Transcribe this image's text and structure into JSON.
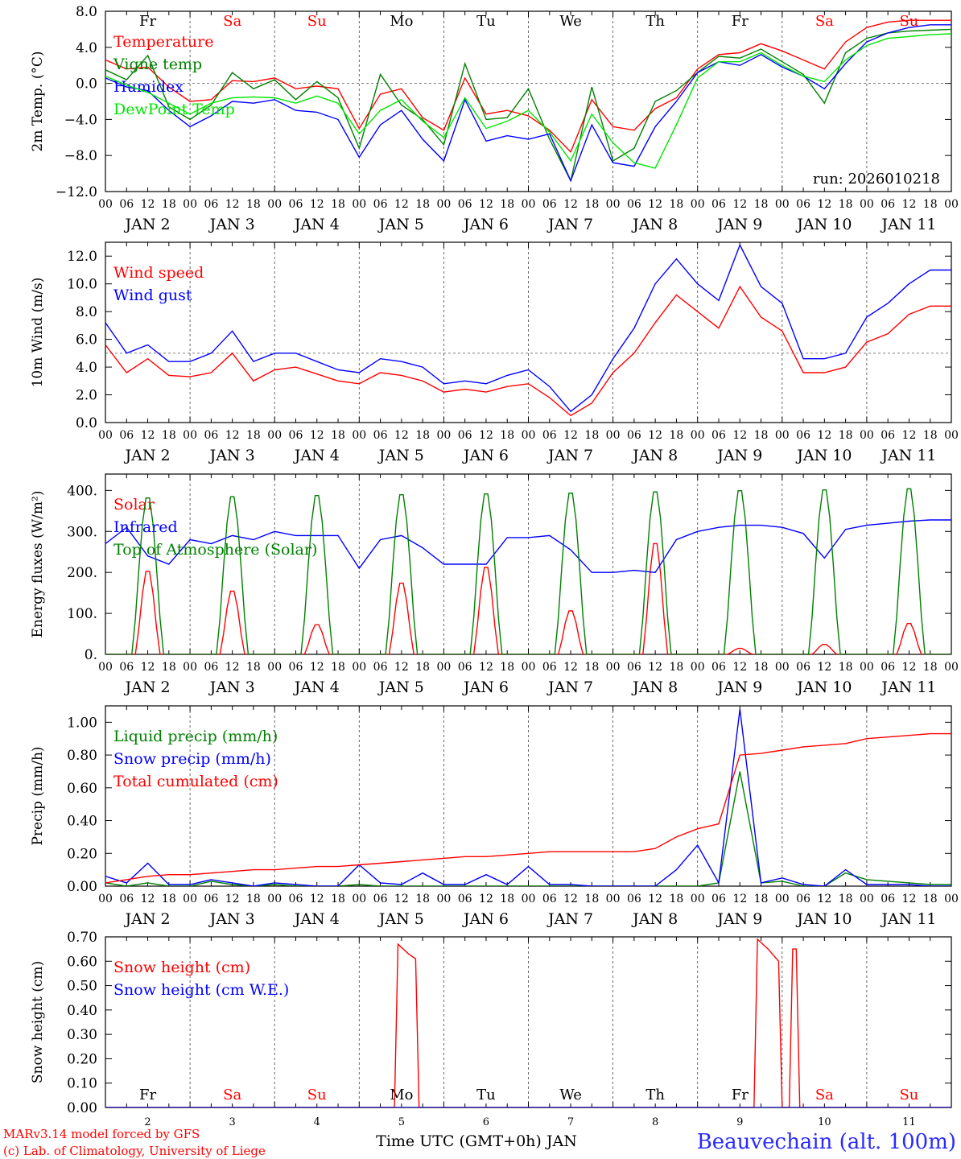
{
  "chart_data": [
    {
      "type": "line",
      "id": "temp",
      "ylabel": "2m Temp. (°C)",
      "ylim": [
        -12,
        8
      ],
      "yticks": [
        -12,
        -8,
        -4,
        0,
        4,
        8
      ],
      "ytick_labels": [
        "−12.0",
        "−8.0",
        "−4.0",
        "0.0",
        "4.0",
        "8.0"
      ],
      "ref_line": 0,
      "show_days_header": true,
      "annotation": "run: 2026010218",
      "x_hours": [
        0,
        6,
        12,
        18,
        24,
        30,
        36,
        42,
        48,
        54,
        60,
        66,
        72,
        78,
        84,
        90,
        96,
        102,
        108,
        114,
        120,
        126,
        132,
        138,
        144,
        150,
        156,
        162,
        168,
        174,
        180,
        186,
        192,
        198,
        204,
        210,
        216,
        222,
        228,
        234,
        240
      ],
      "series": [
        {
          "name": "Temperature",
          "color": "#ff0000",
          "values": [
            2.6,
            1.6,
            1.8,
            -0.4,
            -2.0,
            -1.8,
            0.3,
            0.2,
            0.6,
            -0.6,
            -0.3,
            -0.6,
            -5.0,
            -1.2,
            -0.6,
            -3.8,
            -5.2,
            0.6,
            -3.4,
            -3.0,
            -3.6,
            -5.2,
            -7.6,
            -1.8,
            -4.8,
            -5.2,
            -2.8,
            -1.6,
            1.6,
            3.2,
            3.4,
            4.4,
            3.6,
            2.6,
            1.6,
            4.6,
            6.2,
            6.8,
            7.0,
            7.0,
            7.0
          ]
        },
        {
          "name": "Vigne temp",
          "color": "#008000",
          "values": [
            1.5,
            0.4,
            3.1,
            -2.6,
            -4.0,
            -2.4,
            1.2,
            -0.6,
            0.4,
            -1.8,
            0.2,
            -1.6,
            -7.2,
            1.0,
            -2.4,
            -4.0,
            -6.8,
            2.2,
            -4.0,
            -3.8,
            -0.6,
            -6.2,
            -10.8,
            -0.4,
            -8.6,
            -7.2,
            -2.0,
            -0.8,
            1.2,
            3.0,
            2.8,
            3.8,
            2.4,
            1.0,
            -2.2,
            3.4,
            5.0,
            5.6,
            5.8,
            5.9,
            6.0
          ]
        },
        {
          "name": "Humidex",
          "color": "#0000ff",
          "values": [
            0.6,
            -0.4,
            -0.8,
            -3.0,
            -4.8,
            -3.6,
            -2.0,
            -2.2,
            -1.8,
            -3.0,
            -3.2,
            -4.0,
            -8.2,
            -4.6,
            -3.0,
            -6.2,
            -8.6,
            -1.8,
            -6.4,
            -5.8,
            -6.2,
            -5.6,
            -10.8,
            -4.6,
            -8.8,
            -9.2,
            -4.8,
            -2.0,
            1.2,
            2.4,
            2.0,
            3.2,
            1.8,
            0.8,
            -0.6,
            2.2,
            4.6,
            5.6,
            6.2,
            6.5,
            6.5
          ]
        },
        {
          "name": "DewPoint Temp",
          "color": "#00e600",
          "values": [
            0.8,
            -0.2,
            -1.0,
            -2.2,
            -3.4,
            -2.2,
            -1.6,
            -1.5,
            -1.6,
            -2.2,
            -1.4,
            -2.2,
            -5.6,
            -3.0,
            -1.8,
            -4.2,
            -6.0,
            -1.6,
            -5.0,
            -4.2,
            -3.0,
            -5.4,
            -8.6,
            -3.4,
            -6.6,
            -8.8,
            -9.4,
            -4.6,
            0.6,
            2.4,
            2.4,
            3.4,
            2.0,
            0.8,
            0.2,
            2.6,
            4.2,
            5.0,
            5.2,
            5.4,
            5.5
          ]
        }
      ]
    },
    {
      "type": "line",
      "id": "wind",
      "ylabel": "10m Wind (m/s)",
      "ylim": [
        0,
        13
      ],
      "yticks": [
        0,
        2,
        4,
        6,
        8,
        10,
        12
      ],
      "ytick_labels": [
        "0.0",
        "2.0",
        "4.0",
        "6.0",
        "8.0",
        "10.0",
        "12.0"
      ],
      "ref_line": 5,
      "x_hours": [
        0,
        6,
        12,
        18,
        24,
        30,
        36,
        42,
        48,
        54,
        60,
        66,
        72,
        78,
        84,
        90,
        96,
        102,
        108,
        114,
        120,
        126,
        132,
        138,
        144,
        150,
        156,
        162,
        168,
        174,
        180,
        186,
        192,
        198,
        204,
        210,
        216,
        222,
        228,
        234,
        240
      ],
      "series": [
        {
          "name": "Wind speed",
          "color": "#ff0000",
          "values": [
            5.6,
            3.6,
            4.6,
            3.4,
            3.3,
            3.6,
            5.0,
            3.0,
            3.8,
            4.0,
            3.5,
            3.0,
            2.8,
            3.6,
            3.4,
            3.0,
            2.2,
            2.4,
            2.2,
            2.6,
            2.8,
            1.8,
            0.5,
            1.4,
            3.6,
            5.0,
            7.2,
            9.2,
            8.0,
            6.8,
            9.8,
            7.6,
            6.6,
            3.6,
            3.6,
            4.0,
            5.8,
            6.4,
            7.8,
            8.4,
            8.4
          ]
        },
        {
          "name": "Wind gust",
          "color": "#0000ff",
          "values": [
            7.2,
            5.0,
            5.6,
            4.4,
            4.4,
            5.0,
            6.6,
            4.4,
            5.0,
            5.0,
            4.4,
            3.8,
            3.6,
            4.6,
            4.4,
            4.0,
            2.8,
            3.0,
            2.8,
            3.4,
            3.8,
            2.6,
            0.8,
            2.0,
            4.6,
            6.8,
            10.0,
            11.8,
            10.0,
            8.8,
            12.8,
            9.8,
            8.6,
            4.6,
            4.6,
            5.0,
            7.6,
            8.6,
            10.0,
            11.0,
            11.0
          ]
        }
      ]
    },
    {
      "type": "line",
      "id": "flux",
      "ylabel": "Energy fluxes (W/m²)",
      "ylim": [
        0,
        440
      ],
      "yticks": [
        0,
        100,
        200,
        300,
        400
      ],
      "ytick_labels": [
        "0.",
        "100.",
        "200.",
        "300.",
        "400."
      ],
      "series": [
        {
          "name": "Solar",
          "color": "#ff0000",
          "day_peaks": [
            210,
            160,
            75,
            180,
            220,
            110,
            280,
            15,
            25,
            78
          ]
        },
        {
          "name": "Infrared",
          "color": "#0000ff",
          "x_hours": [
            0,
            6,
            12,
            18,
            24,
            30,
            36,
            42,
            48,
            54,
            60,
            66,
            72,
            78,
            84,
            90,
            96,
            102,
            108,
            114,
            120,
            126,
            132,
            138,
            144,
            150,
            156,
            162,
            168,
            174,
            180,
            186,
            192,
            198,
            204,
            210,
            216,
            222,
            228,
            234,
            240
          ],
          "values": [
            270,
            310,
            240,
            220,
            280,
            270,
            290,
            280,
            300,
            290,
            290,
            290,
            210,
            280,
            290,
            260,
            220,
            220,
            220,
            285,
            285,
            290,
            255,
            200,
            200,
            205,
            200,
            280,
            300,
            310,
            315,
            315,
            310,
            295,
            235,
            305,
            315,
            320,
            325,
            328,
            328
          ]
        },
        {
          "name": "Top of Atmosphere (Solar)",
          "color": "#008000",
          "day_peaks": [
            390,
            393,
            396,
            398,
            400,
            402,
            405,
            408,
            410,
            413
          ]
        }
      ]
    },
    {
      "type": "line",
      "id": "precip",
      "ylabel": "Precip (mm/h)",
      "ylim": [
        0,
        1.1
      ],
      "yticks": [
        0,
        0.2,
        0.4,
        0.6,
        0.8,
        1.0
      ],
      "ytick_labels": [
        "0.00",
        "0.20",
        "0.40",
        "0.60",
        "0.80",
        "1.00"
      ],
      "series": [
        {
          "name": "Liquid precip (mm/h)",
          "color": "#008000",
          "x_hours": [
            0,
            6,
            12,
            18,
            24,
            30,
            36,
            42,
            48,
            54,
            60,
            66,
            72,
            78,
            84,
            90,
            96,
            102,
            108,
            114,
            120,
            126,
            132,
            138,
            144,
            150,
            156,
            162,
            168,
            174,
            180,
            186,
            192,
            198,
            204,
            210,
            216,
            222,
            228,
            234,
            240
          ],
          "values": [
            0.02,
            0.0,
            0.02,
            0.0,
            0.0,
            0.03,
            0.01,
            0.0,
            0.01,
            0.0,
            0.0,
            0.0,
            0.01,
            0.0,
            0.0,
            0.0,
            0.0,
            0.0,
            0.0,
            0.0,
            0.0,
            0.0,
            0.0,
            0.0,
            0.0,
            0.0,
            0.0,
            0.0,
            0.0,
            0.02,
            0.7,
            0.02,
            0.03,
            0.0,
            0.0,
            0.08,
            0.04,
            0.03,
            0.02,
            0.01,
            0.01
          ]
        },
        {
          "name": "Snow precip (mm/h)",
          "color": "#0000ff",
          "x_hours": [
            0,
            6,
            12,
            18,
            24,
            30,
            36,
            42,
            48,
            54,
            60,
            66,
            72,
            78,
            84,
            90,
            96,
            102,
            108,
            114,
            120,
            126,
            132,
            138,
            144,
            150,
            156,
            162,
            168,
            174,
            180,
            186,
            192,
            198,
            204,
            210,
            216,
            222,
            228,
            234,
            240
          ],
          "values": [
            0.06,
            0.02,
            0.14,
            0.01,
            0.01,
            0.04,
            0.02,
            0.0,
            0.02,
            0.01,
            0.0,
            0.0,
            0.13,
            0.02,
            0.01,
            0.08,
            0.01,
            0.01,
            0.07,
            0.01,
            0.12,
            0.01,
            0.01,
            0.0,
            0.0,
            0.0,
            0.0,
            0.1,
            0.25,
            0.02,
            1.08,
            0.02,
            0.05,
            0.01,
            0.0,
            0.1,
            0.01,
            0.01,
            0.01,
            0.0,
            0.0
          ]
        },
        {
          "name": "Total cumulated (cm)",
          "color": "#ff0000",
          "x_hours": [
            0,
            6,
            12,
            18,
            24,
            30,
            36,
            42,
            48,
            54,
            60,
            66,
            72,
            78,
            84,
            90,
            96,
            102,
            108,
            114,
            120,
            126,
            132,
            138,
            144,
            150,
            156,
            162,
            168,
            174,
            180,
            186,
            192,
            198,
            204,
            210,
            216,
            222,
            228,
            234,
            240
          ],
          "values": [
            0.02,
            0.04,
            0.06,
            0.07,
            0.07,
            0.08,
            0.09,
            0.1,
            0.1,
            0.11,
            0.12,
            0.12,
            0.13,
            0.14,
            0.15,
            0.16,
            0.17,
            0.18,
            0.18,
            0.19,
            0.2,
            0.21,
            0.21,
            0.21,
            0.21,
            0.21,
            0.23,
            0.3,
            0.35,
            0.38,
            0.8,
            0.81,
            0.83,
            0.85,
            0.86,
            0.87,
            0.9,
            0.91,
            0.92,
            0.93,
            0.93
          ]
        }
      ]
    },
    {
      "type": "line",
      "id": "snow",
      "ylabel": "Snow height (cm)",
      "ylim": [
        0,
        0.7
      ],
      "yticks": [
        0,
        0.1,
        0.2,
        0.3,
        0.4,
        0.5,
        0.6,
        0.7
      ],
      "ytick_labels": [
        "0.00",
        "0.10",
        "0.20",
        "0.30",
        "0.40",
        "0.50",
        "0.60",
        "0.70"
      ],
      "series": [
        {
          "name": "Snow height (cm)",
          "color": "#ff0000",
          "x_hours": [
            0,
            82,
            83,
            86,
            88,
            89,
            184,
            185,
            188,
            191,
            192,
            194,
            195,
            196,
            197,
            198,
            240
          ],
          "values": [
            0,
            0,
            0.67,
            0.63,
            0.61,
            0,
            0,
            0.69,
            0.65,
            0.6,
            0,
            0,
            0.65,
            0.65,
            0,
            0,
            0
          ]
        },
        {
          "name": "Snow height (cm W.E.)",
          "color": "#0000ff",
          "x_hours": [
            0,
            240
          ],
          "values": [
            0,
            0
          ]
        }
      ]
    }
  ],
  "days_header": [
    {
      "label": "Fr",
      "weekend": false
    },
    {
      "label": "Sa",
      "weekend": true
    },
    {
      "label": "Su",
      "weekend": true
    },
    {
      "label": "Mo",
      "weekend": false
    },
    {
      "label": "Tu",
      "weekend": false
    },
    {
      "label": "We",
      "weekend": false
    },
    {
      "label": "Th",
      "weekend": false
    },
    {
      "label": "Fr",
      "weekend": false
    },
    {
      "label": "Sa",
      "weekend": true
    },
    {
      "label": "Su",
      "weekend": true
    }
  ],
  "date_labels": [
    "JAN  2",
    "JAN  3",
    "JAN  4",
    "JAN  5",
    "JAN  6",
    "JAN  7",
    "JAN  8",
    "JAN  9",
    "JAN 10",
    "JAN 11"
  ],
  "hour_tick_labels": [
    "00",
    "06",
    "12",
    "18"
  ],
  "final_hour_label": "00",
  "day_numbers": [
    "2",
    "3",
    "4",
    "5",
    "6",
    "7",
    "8",
    "9",
    "10",
    "11"
  ],
  "xlabel": "Time UTC (GMT+0h) JAN",
  "station": "Beauvechain (alt. 100m)",
  "credit_model": "MARv3.14 model forced by GFS",
  "credit_lab": "(c) Lab. of Climatology, University of Liege",
  "colors": {
    "red": "#ff0000",
    "green": "#008000",
    "blue": "#0000ff",
    "lightgreen": "#00e600",
    "station": "#2a2aff"
  }
}
